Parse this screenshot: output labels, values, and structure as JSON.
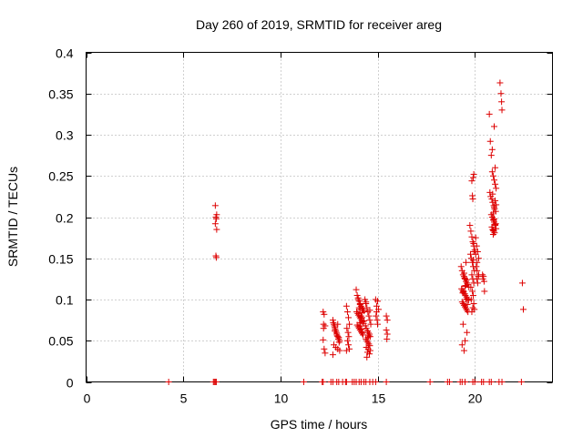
{
  "chart_data": {
    "type": "scatter",
    "title": "Day 260 of 2019, SRMTID for receiver areg",
    "xlabel": "GPS time / hours",
    "ylabel": "SRMTID / TECUs",
    "xlim": [
      0,
      24
    ],
    "ylim": [
      0,
      0.4
    ],
    "grid": true,
    "marker": "+",
    "marker_color": "#dd0000",
    "x_ticks": [
      0,
      5,
      10,
      15,
      20
    ],
    "x_tick_labels": [
      "0",
      "5",
      "10",
      "15",
      "20"
    ],
    "y_ticks": [
      0,
      0.05,
      0.1,
      0.15,
      0.2,
      0.25,
      0.3,
      0.35,
      0.4
    ],
    "y_tick_labels": [
      "0",
      "0.05",
      "0.1",
      "0.15",
      "0.2",
      "0.25",
      "0.3",
      "0.35",
      "0.4"
    ],
    "series": [
      {
        "name": "SRMTID",
        "x": [
          4.25,
          6.55,
          6.6,
          6.65,
          6.7,
          11.2,
          12.15,
          12.2,
          12.6,
          12.7,
          12.9,
          13.0,
          13.2,
          13.35,
          13.4,
          13.7,
          13.8,
          13.9,
          14.05,
          14.15,
          14.3,
          14.4,
          14.6,
          14.75,
          14.9,
          15.45,
          17.7,
          18.6,
          18.7,
          19.25,
          19.35,
          19.5,
          19.9,
          20.0,
          20.35,
          20.45,
          20.75,
          20.85,
          21.25,
          21.4,
          22.4,
          6.65,
          6.72,
          6.68,
          6.7,
          6.65,
          6.72,
          6.68,
          6.7,
          12.2,
          12.25,
          12.22,
          12.3,
          12.2,
          12.25,
          12.3,
          12.22,
          12.7,
          12.75,
          12.8,
          12.85,
          12.9,
          12.95,
          13.0,
          13.05,
          12.72,
          12.78,
          12.82,
          12.88,
          12.92,
          12.98,
          13.02,
          12.75,
          12.85,
          12.95,
          13.05,
          12.8,
          12.9,
          13.0,
          12.7,
          12.95,
          13.4,
          13.45,
          13.5,
          13.55,
          13.42,
          13.48,
          13.52,
          13.45,
          13.5,
          13.55,
          13.4,
          13.9,
          13.95,
          14.0,
          14.05,
          14.1,
          14.15,
          14.2,
          14.25,
          14.3,
          13.92,
          13.98,
          14.02,
          14.08,
          14.12,
          14.18,
          14.22,
          14.28,
          13.95,
          14.0,
          14.05,
          14.1,
          14.15,
          14.2,
          14.25,
          14.05,
          14.1,
          14.15,
          14.2,
          14.0,
          14.1,
          14.2,
          14.3,
          14.12,
          14.18,
          14.22,
          14.08,
          14.35,
          14.4,
          14.45,
          14.5,
          14.55,
          14.6,
          14.65,
          14.38,
          14.42,
          14.48,
          14.52,
          14.58,
          14.62,
          14.4,
          14.45,
          14.5,
          14.55,
          14.6,
          14.42,
          14.52,
          14.62,
          14.48,
          14.58,
          14.45,
          14.55,
          14.5,
          14.4,
          14.6,
          14.9,
          15.0,
          14.95,
          15.05,
          14.92,
          14.98,
          15.0,
          14.95,
          15.45,
          15.5,
          15.45,
          15.5,
          15.48,
          19.3,
          19.35,
          19.4,
          19.45,
          19.5,
          19.55,
          19.6,
          19.65,
          19.7,
          19.32,
          19.38,
          19.42,
          19.48,
          19.52,
          19.58,
          19.62,
          19.68,
          19.35,
          19.4,
          19.45,
          19.5,
          19.55,
          19.6,
          19.65,
          19.42,
          19.5,
          19.58,
          19.45,
          19.55,
          19.4,
          19.6,
          19.5,
          19.35,
          19.45,
          19.55,
          19.48,
          19.52,
          19.38,
          19.62,
          19.75,
          19.8,
          19.85,
          19.9,
          19.95,
          20.0,
          19.78,
          19.82,
          19.88,
          19.92,
          19.98,
          19.85,
          19.9,
          19.95,
          19.8,
          19.88,
          19.92,
          19.82,
          19.95,
          19.9,
          19.85,
          19.98,
          19.95,
          19.92,
          19.85,
          19.88,
          19.9,
          19.94,
          19.96,
          19.92,
          20.05,
          20.1,
          20.15,
          20.2,
          20.08,
          20.12,
          20.18,
          20.1,
          20.15,
          20.05,
          20.2,
          20.12,
          20.4,
          20.45,
          20.42,
          20.48,
          20.5,
          20.75,
          20.8,
          20.85,
          20.9,
          20.95,
          21.0,
          21.05,
          21.1,
          20.78,
          20.82,
          20.88,
          20.92,
          20.98,
          21.02,
          21.08,
          20.85,
          20.9,
          20.95,
          21.0,
          21.05,
          20.88,
          20.92,
          20.98,
          21.02,
          20.95,
          21.0,
          20.9,
          21.05,
          21.1,
          20.95,
          21.0,
          21.05,
          21.1,
          20.92,
          21.0,
          21.08,
          20.95,
          21.05,
          20.98,
          21.3,
          21.35,
          21.4,
          21.38,
          22.45,
          22.5
        ],
        "y": [
          0,
          0,
          0,
          0,
          0,
          0,
          0,
          0,
          0,
          0,
          0,
          0,
          0,
          0,
          0,
          0,
          0,
          0,
          0,
          0,
          0,
          0,
          0,
          0,
          0,
          0,
          0,
          0,
          0,
          0,
          0,
          0,
          0,
          0,
          0,
          0,
          0,
          0,
          0,
          0,
          0,
          0.214,
          0.203,
          0.2,
          0.198,
          0.192,
          0.185,
          0.153,
          0.151,
          0.085,
          0.082,
          0.07,
          0.068,
          0.051,
          0.04,
          0.035,
          0.065,
          0.075,
          0.07,
          0.066,
          0.062,
          0.058,
          0.055,
          0.052,
          0.05,
          0.072,
          0.068,
          0.064,
          0.06,
          0.056,
          0.052,
          0.048,
          0.045,
          0.042,
          0.04,
          0.038,
          0.062,
          0.058,
          0.054,
          0.033,
          0.07,
          0.092,
          0.085,
          0.078,
          0.07,
          0.065,
          0.06,
          0.055,
          0.05,
          0.045,
          0.04,
          0.038,
          0.112,
          0.105,
          0.1,
          0.098,
          0.095,
          0.092,
          0.09,
          0.088,
          0.086,
          0.085,
          0.083,
          0.081,
          0.079,
          0.077,
          0.075,
          0.073,
          0.071,
          0.069,
          0.067,
          0.065,
          0.063,
          0.061,
          0.059,
          0.057,
          0.09,
          0.088,
          0.08,
          0.078,
          0.102,
          0.094,
          0.084,
          0.074,
          0.068,
          0.064,
          0.06,
          0.072,
          0.1,
          0.095,
          0.09,
          0.085,
          0.08,
          0.075,
          0.07,
          0.068,
          0.065,
          0.062,
          0.06,
          0.058,
          0.055,
          0.052,
          0.05,
          0.048,
          0.046,
          0.044,
          0.042,
          0.04,
          0.038,
          0.036,
          0.034,
          0.03,
          0.056,
          0.054,
          0.097,
          0.087,
          0.1,
          0.098,
          0.092,
          0.088,
          0.08,
          0.075,
          0.07,
          0.085,
          0.08,
          0.075,
          0.063,
          0.058,
          0.052,
          0.14,
          0.135,
          0.13,
          0.128,
          0.125,
          0.122,
          0.12,
          0.118,
          0.115,
          0.113,
          0.111,
          0.109,
          0.107,
          0.105,
          0.103,
          0.101,
          0.099,
          0.097,
          0.095,
          0.093,
          0.091,
          0.089,
          0.087,
          0.085,
          0.11,
          0.116,
          0.124,
          0.132,
          0.1,
          0.07,
          0.06,
          0.05,
          0.045,
          0.038,
          0.145,
          0.126,
          0.117,
          0.108,
          0.094,
          0.19,
          0.183,
          0.176,
          0.17,
          0.165,
          0.16,
          0.155,
          0.15,
          0.145,
          0.14,
          0.135,
          0.13,
          0.125,
          0.12,
          0.115,
          0.11,
          0.105,
          0.1,
          0.095,
          0.09,
          0.085,
          0.088,
          0.252,
          0.248,
          0.244,
          0.226,
          0.222,
          0.168,
          0.158,
          0.148,
          0.175,
          0.165,
          0.158,
          0.15,
          0.14,
          0.135,
          0.128,
          0.125,
          0.12,
          0.155,
          0.13,
          0.145,
          0.13,
          0.128,
          0.125,
          0.122,
          0.11,
          0.325,
          0.292,
          0.275,
          0.255,
          0.25,
          0.245,
          0.24,
          0.235,
          0.23,
          0.225,
          0.222,
          0.218,
          0.214,
          0.21,
          0.207,
          0.203,
          0.2,
          0.197,
          0.194,
          0.191,
          0.188,
          0.185,
          0.183,
          0.181,
          0.179,
          0.31,
          0.282,
          0.26,
          0.215,
          0.205,
          0.198,
          0.19,
          0.186,
          0.228,
          0.212,
          0.192,
          0.184,
          0.22,
          0.196,
          0.363,
          0.35,
          0.33,
          0.34,
          0.12,
          0.088
        ]
      }
    ]
  }
}
